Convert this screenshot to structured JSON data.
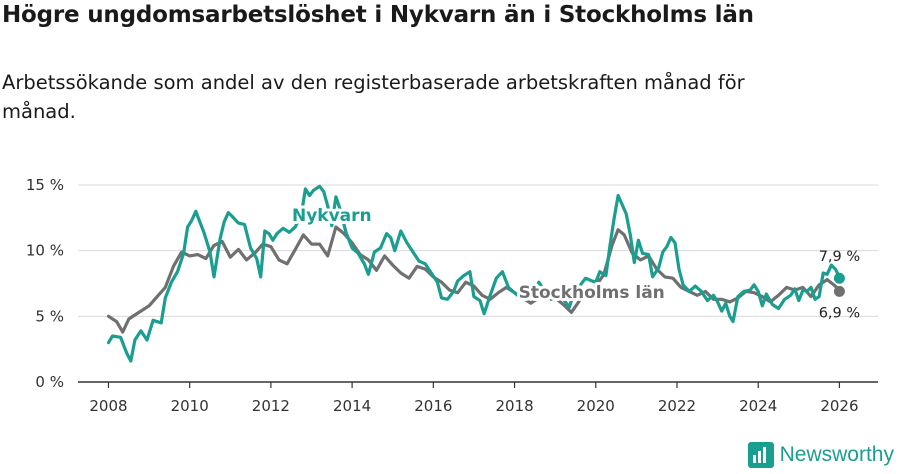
{
  "title": "Högre ungdomsarbetslöshet i Nykvarn än i Stockholms län",
  "subtitle": "Arbetssökande som andel av den registerbaserade arbetskraften månad för månad.",
  "brand": {
    "name": "Newsworthy",
    "color": "#1a9e8f"
  },
  "chart_data": {
    "type": "line",
    "title": "Högre ungdomsarbetslöshet i Nykvarn än i Stockholms län",
    "xlabel": "",
    "ylabel": "",
    "xlim": [
      2007.25,
      2026.95
    ],
    "ylim": [
      0,
      15
    ],
    "grid": true,
    "x_ticks": [
      2008,
      2010,
      2012,
      2014,
      2016,
      2018,
      2020,
      2022,
      2024,
      2026
    ],
    "x_tick_labels": [
      "2008",
      "2010",
      "2012",
      "2014",
      "2016",
      "2018",
      "2020",
      "2022",
      "2024",
      "2026"
    ],
    "y_ticks": [
      0,
      5,
      10,
      15
    ],
    "y_tick_labels": [
      "0 %",
      "5 %",
      "10 %",
      "15 %"
    ],
    "series": [
      {
        "name": "Stockholms län",
        "color": "#707070",
        "end_label": "6,9 %",
        "points": [
          [
            2008.0,
            5.0
          ],
          [
            2008.2,
            4.6
          ],
          [
            2008.35,
            3.8
          ],
          [
            2008.5,
            4.8
          ],
          [
            2008.75,
            5.3
          ],
          [
            2009.0,
            5.8
          ],
          [
            2009.2,
            6.5
          ],
          [
            2009.4,
            7.2
          ],
          [
            2009.6,
            8.8
          ],
          [
            2009.8,
            9.9
          ],
          [
            2010.0,
            9.6
          ],
          [
            2010.2,
            9.7
          ],
          [
            2010.4,
            9.4
          ],
          [
            2010.6,
            10.4
          ],
          [
            2010.8,
            10.7
          ],
          [
            2011.0,
            9.5
          ],
          [
            2011.2,
            10.1
          ],
          [
            2011.4,
            9.3
          ],
          [
            2011.6,
            9.8
          ],
          [
            2011.8,
            10.5
          ],
          [
            2012.0,
            10.3
          ],
          [
            2012.2,
            9.3
          ],
          [
            2012.4,
            9.0
          ],
          [
            2012.6,
            10.1
          ],
          [
            2012.8,
            11.2
          ],
          [
            2013.0,
            10.5
          ],
          [
            2013.2,
            10.5
          ],
          [
            2013.4,
            9.6
          ],
          [
            2013.6,
            11.8
          ],
          [
            2013.8,
            11.3
          ],
          [
            2014.0,
            10.6
          ],
          [
            2014.2,
            9.7
          ],
          [
            2014.4,
            9.3
          ],
          [
            2014.6,
            8.5
          ],
          [
            2014.8,
            9.6
          ],
          [
            2015.0,
            8.9
          ],
          [
            2015.2,
            8.3
          ],
          [
            2015.4,
            7.9
          ],
          [
            2015.6,
            8.8
          ],
          [
            2015.8,
            8.6
          ],
          [
            2016.0,
            8.0
          ],
          [
            2016.2,
            7.6
          ],
          [
            2016.4,
            7.0
          ],
          [
            2016.6,
            6.8
          ],
          [
            2016.8,
            7.6
          ],
          [
            2017.0,
            7.3
          ],
          [
            2017.2,
            6.6
          ],
          [
            2017.4,
            6.3
          ],
          [
            2017.6,
            6.8
          ],
          [
            2017.8,
            7.2
          ],
          [
            2018.0,
            6.8
          ],
          [
            2018.2,
            6.4
          ],
          [
            2018.4,
            6.0
          ],
          [
            2018.6,
            6.4
          ],
          [
            2018.8,
            6.6
          ],
          [
            2019.0,
            6.4
          ],
          [
            2019.2,
            5.9
          ],
          [
            2019.4,
            5.3
          ],
          [
            2019.6,
            6.2
          ],
          [
            2019.8,
            6.9
          ],
          [
            2020.0,
            7.3
          ],
          [
            2020.2,
            8.2
          ],
          [
            2020.4,
            10.4
          ],
          [
            2020.55,
            11.6
          ],
          [
            2020.7,
            11.2
          ],
          [
            2020.9,
            9.8
          ],
          [
            2021.1,
            9.3
          ],
          [
            2021.3,
            9.6
          ],
          [
            2021.5,
            8.6
          ],
          [
            2021.7,
            8.0
          ],
          [
            2021.9,
            7.9
          ],
          [
            2022.1,
            7.2
          ],
          [
            2022.3,
            6.9
          ],
          [
            2022.5,
            6.6
          ],
          [
            2022.7,
            6.9
          ],
          [
            2022.9,
            6.3
          ],
          [
            2023.1,
            6.3
          ],
          [
            2023.3,
            6.1
          ],
          [
            2023.5,
            6.4
          ],
          [
            2023.7,
            6.9
          ],
          [
            2023.9,
            6.8
          ],
          [
            2024.1,
            6.5
          ],
          [
            2024.3,
            6.1
          ],
          [
            2024.5,
            6.6
          ],
          [
            2024.7,
            7.2
          ],
          [
            2024.9,
            7.0
          ],
          [
            2025.1,
            7.2
          ],
          [
            2025.3,
            6.5
          ],
          [
            2025.5,
            7.4
          ],
          [
            2025.7,
            7.8
          ],
          [
            2025.9,
            7.3
          ],
          [
            2026.0,
            6.9
          ]
        ]
      },
      {
        "name": "Nykvarn",
        "color": "#1a9e8f",
        "end_label": "7,9 %",
        "points": [
          [
            2008.0,
            3.0
          ],
          [
            2008.1,
            3.5
          ],
          [
            2008.3,
            3.4
          ],
          [
            2008.45,
            2.2
          ],
          [
            2008.55,
            1.6
          ],
          [
            2008.65,
            3.2
          ],
          [
            2008.8,
            3.9
          ],
          [
            2008.95,
            3.2
          ],
          [
            2009.1,
            4.7
          ],
          [
            2009.3,
            4.5
          ],
          [
            2009.4,
            6.4
          ],
          [
            2009.55,
            7.6
          ],
          [
            2009.7,
            8.4
          ],
          [
            2009.85,
            9.8
          ],
          [
            2009.95,
            11.8
          ],
          [
            2010.05,
            12.3
          ],
          [
            2010.15,
            13.0
          ],
          [
            2010.25,
            12.2
          ],
          [
            2010.35,
            11.4
          ],
          [
            2010.5,
            9.9
          ],
          [
            2010.6,
            8.0
          ],
          [
            2010.75,
            10.9
          ],
          [
            2010.85,
            12.2
          ],
          [
            2010.95,
            12.9
          ],
          [
            2011.05,
            12.6
          ],
          [
            2011.2,
            12.1
          ],
          [
            2011.35,
            12.0
          ],
          [
            2011.5,
            10.2
          ],
          [
            2011.65,
            9.4
          ],
          [
            2011.75,
            8.0
          ],
          [
            2011.85,
            11.5
          ],
          [
            2011.95,
            11.3
          ],
          [
            2012.05,
            10.8
          ],
          [
            2012.15,
            11.3
          ],
          [
            2012.3,
            11.7
          ],
          [
            2012.45,
            11.4
          ],
          [
            2012.6,
            11.8
          ],
          [
            2012.75,
            12.8
          ],
          [
            2012.85,
            14.7
          ],
          [
            2012.95,
            14.2
          ],
          [
            2013.05,
            14.6
          ],
          [
            2013.2,
            14.9
          ],
          [
            2013.3,
            14.5
          ],
          [
            2013.4,
            13.4
          ],
          [
            2013.5,
            11.9
          ],
          [
            2013.6,
            14.1
          ],
          [
            2013.7,
            13.2
          ],
          [
            2013.85,
            11.4
          ],
          [
            2014.0,
            10.2
          ],
          [
            2014.15,
            9.8
          ],
          [
            2014.3,
            9.0
          ],
          [
            2014.4,
            8.2
          ],
          [
            2014.55,
            9.9
          ],
          [
            2014.7,
            10.2
          ],
          [
            2014.85,
            11.3
          ],
          [
            2014.95,
            11.0
          ],
          [
            2015.05,
            10.0
          ],
          [
            2015.2,
            11.5
          ],
          [
            2015.35,
            10.6
          ],
          [
            2015.5,
            9.9
          ],
          [
            2015.65,
            9.2
          ],
          [
            2015.8,
            9.0
          ],
          [
            2015.95,
            8.3
          ],
          [
            2016.1,
            7.6
          ],
          [
            2016.2,
            6.4
          ],
          [
            2016.35,
            6.3
          ],
          [
            2016.5,
            6.9
          ],
          [
            2016.6,
            7.7
          ],
          [
            2016.75,
            8.1
          ],
          [
            2016.9,
            8.4
          ],
          [
            2017.0,
            6.5
          ],
          [
            2017.15,
            6.2
          ],
          [
            2017.25,
            5.2
          ],
          [
            2017.4,
            6.6
          ],
          [
            2017.55,
            7.9
          ],
          [
            2017.7,
            8.4
          ],
          [
            2017.85,
            7.2
          ],
          [
            2018.0,
            6.8
          ],
          [
            2018.15,
            6.4
          ],
          [
            2018.3,
            6.3
          ],
          [
            2018.45,
            6.9
          ],
          [
            2018.6,
            7.6
          ],
          [
            2018.75,
            6.9
          ],
          [
            2018.9,
            6.3
          ],
          [
            2019.05,
            6.5
          ],
          [
            2019.2,
            6.3
          ],
          [
            2019.35,
            5.7
          ],
          [
            2019.45,
            6.7
          ],
          [
            2019.6,
            7.3
          ],
          [
            2019.75,
            7.9
          ],
          [
            2019.9,
            7.7
          ],
          [
            2020.0,
            7.6
          ],
          [
            2020.1,
            8.4
          ],
          [
            2020.25,
            8.1
          ],
          [
            2020.35,
            10.4
          ],
          [
            2020.45,
            12.4
          ],
          [
            2020.55,
            14.2
          ],
          [
            2020.65,
            13.5
          ],
          [
            2020.75,
            12.8
          ],
          [
            2020.85,
            11.2
          ],
          [
            2020.95,
            9.1
          ],
          [
            2021.05,
            10.8
          ],
          [
            2021.15,
            9.8
          ],
          [
            2021.3,
            9.7
          ],
          [
            2021.4,
            8.0
          ],
          [
            2021.55,
            8.7
          ],
          [
            2021.65,
            9.9
          ],
          [
            2021.75,
            10.3
          ],
          [
            2021.85,
            11.0
          ],
          [
            2021.95,
            10.6
          ],
          [
            2022.05,
            8.6
          ],
          [
            2022.15,
            7.4
          ],
          [
            2022.3,
            6.9
          ],
          [
            2022.45,
            7.3
          ],
          [
            2022.6,
            6.9
          ],
          [
            2022.75,
            6.2
          ],
          [
            2022.9,
            6.6
          ],
          [
            2023.0,
            6.1
          ],
          [
            2023.1,
            5.4
          ],
          [
            2023.2,
            6.0
          ],
          [
            2023.3,
            5.0
          ],
          [
            2023.38,
            4.6
          ],
          [
            2023.5,
            6.5
          ],
          [
            2023.65,
            6.9
          ],
          [
            2023.8,
            7.0
          ],
          [
            2023.9,
            7.4
          ],
          [
            2024.0,
            6.9
          ],
          [
            2024.1,
            5.8
          ],
          [
            2024.2,
            6.7
          ],
          [
            2024.35,
            5.9
          ],
          [
            2024.5,
            5.6
          ],
          [
            2024.65,
            6.3
          ],
          [
            2024.8,
            6.6
          ],
          [
            2024.9,
            7.1
          ],
          [
            2025.0,
            6.2
          ],
          [
            2025.1,
            7.0
          ],
          [
            2025.2,
            6.9
          ],
          [
            2025.3,
            7.2
          ],
          [
            2025.4,
            6.3
          ],
          [
            2025.5,
            6.5
          ],
          [
            2025.6,
            8.3
          ],
          [
            2025.7,
            8.2
          ],
          [
            2025.8,
            8.9
          ],
          [
            2025.9,
            8.6
          ],
          [
            2025.95,
            8.3
          ],
          [
            2026.0,
            7.9
          ]
        ]
      }
    ],
    "annotations": [
      {
        "text": "Nykvarn",
        "series": "Nykvarn"
      },
      {
        "text": "Stockholms län",
        "series": "Stockholms län"
      }
    ]
  }
}
